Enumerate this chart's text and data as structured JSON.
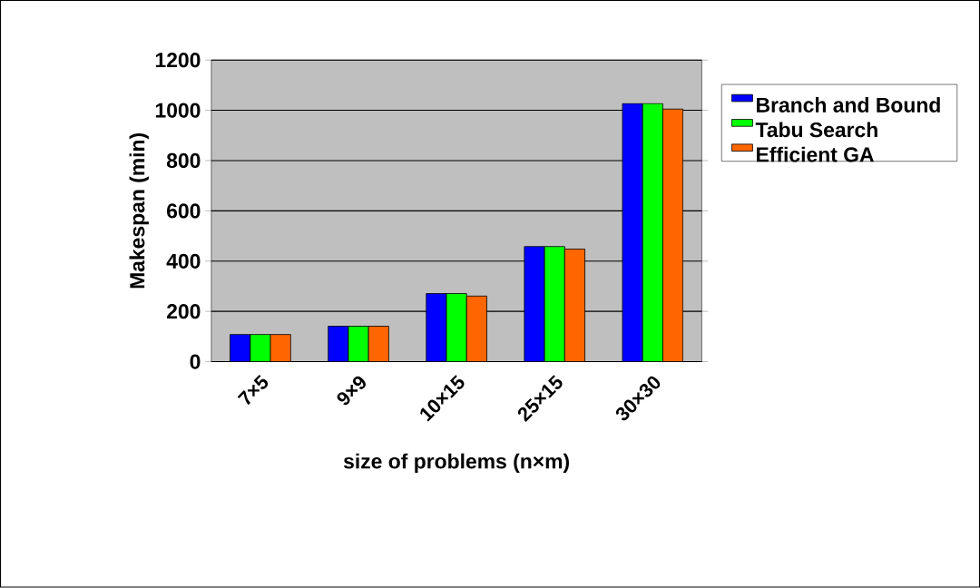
{
  "chart_data": {
    "type": "bar",
    "xlabel": "size of problems (n×m)",
    "ylabel": "Makespan (min)",
    "categories": [
      "7×5",
      "9×9",
      "10×15",
      "25×15",
      "30×30"
    ],
    "series": [
      {
        "name": "Branch and Bound",
        "color": "#0000ff",
        "values": [
          108,
          141,
          271,
          458,
          1027
        ]
      },
      {
        "name": "Tabu Search",
        "color": "#00ff00",
        "values": [
          108,
          141,
          271,
          458,
          1027
        ]
      },
      {
        "name": "Efficient GA",
        "color": "#ff6600",
        "values": [
          108,
          141,
          261,
          448,
          1005
        ]
      }
    ],
    "ylim": [
      0,
      1200
    ],
    "yticks": [
      0,
      200,
      400,
      600,
      800,
      1000,
      1200
    ],
    "grid": "y",
    "legend": "right"
  }
}
